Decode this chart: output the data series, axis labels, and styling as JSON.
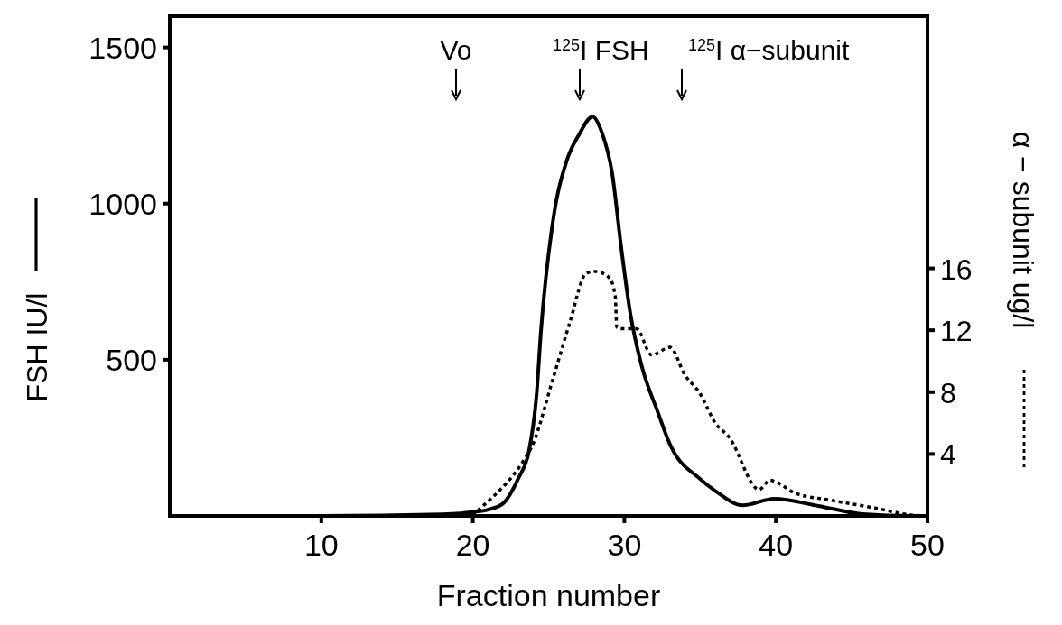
{
  "chart_data": {
    "type": "line",
    "xlabel": "Fraction number",
    "ylabel": "FSH IU/l",
    "y2label": "α − subunit ug/l",
    "xlim": [
      0,
      50
    ],
    "xticks": [
      10,
      20,
      30,
      40,
      50
    ],
    "ylim": [
      0,
      1600
    ],
    "yticks": [
      500,
      1000,
      1500
    ],
    "y2lim": [
      0,
      32.3
    ],
    "y2ticks": [
      4,
      8,
      12,
      16
    ],
    "grid": false,
    "marker": "none",
    "annotations": [
      "Vo",
      "$^{125}$I FSH",
      "$^{125}$I α−subunit"
    ],
    "series": [
      {
        "color": "#000000",
        "line_style": "solid",
        "x": [
          0,
          10,
          18,
          20,
          21,
          22,
          23,
          23.7,
          24.2,
          24.5,
          25.3,
          26.2,
          27,
          27.9,
          28.5,
          29.2,
          29.8,
          30.4,
          31.1,
          32.2,
          33,
          35,
          36,
          37.8,
          39.9,
          42.8,
          45.7,
          49,
          50
        ],
        "values": [
          0,
          0,
          5,
          12,
          20,
          40,
          120,
          207,
          385,
          595,
          948,
          1138,
          1220,
          1279,
          1230,
          1095,
          856,
          646,
          488,
          333,
          230,
          118,
          80,
          34,
          55,
          32,
          6,
          0,
          0
        ]
      },
      {
        "color": "#000000",
        "line_style": "dotted",
        "axis": "y2",
        "x": [
          20,
          20.5,
          21.3,
          23.3,
          23.9,
          25.3,
          26.4,
          27.5,
          28.1,
          29,
          29.4,
          29.5,
          29.8,
          30.8,
          31.8,
          33,
          34,
          35,
          36,
          36.9,
          38.9,
          39.6,
          40,
          41.2,
          43.7,
          46.6,
          49,
          50
        ],
        "values": [
          0,
          0.5,
          1.2,
          3.5,
          4.5,
          8.9,
          12.5,
          15.7,
          15.8,
          15.4,
          14.2,
          12.2,
          12.1,
          12.1,
          10.4,
          10.9,
          9.1,
          7.9,
          6.0,
          5.1,
          1.7,
          2.3,
          2.2,
          1.5,
          1.0,
          0.5,
          0.05,
          0
        ]
      }
    ]
  }
}
